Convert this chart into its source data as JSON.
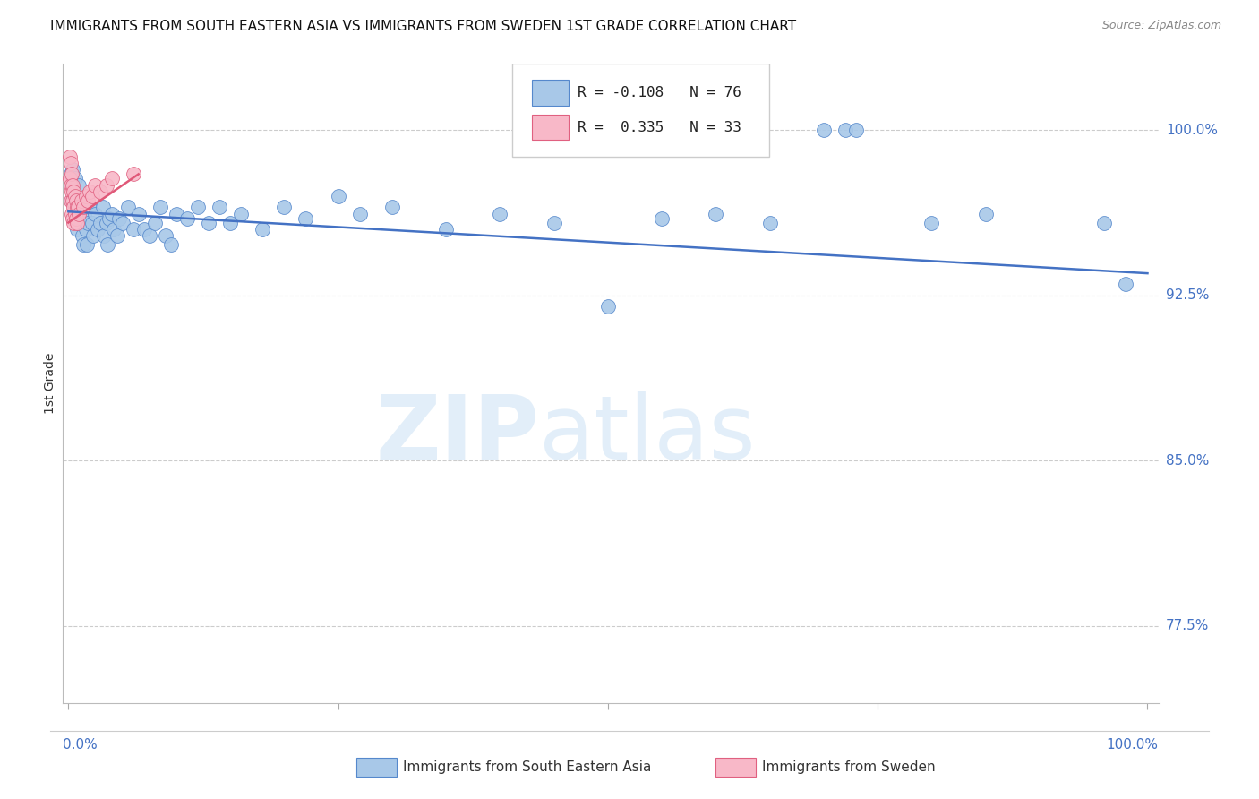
{
  "title": "IMMIGRANTS FROM SOUTH EASTERN ASIA VS IMMIGRANTS FROM SWEDEN 1ST GRADE CORRELATION CHART",
  "source": "Source: ZipAtlas.com",
  "ylabel": "1st Grade",
  "ytick_labels": [
    "100.0%",
    "92.5%",
    "85.0%",
    "77.5%"
  ],
  "ytick_values": [
    1.0,
    0.925,
    0.85,
    0.775
  ],
  "ymin": 0.74,
  "ymax": 1.03,
  "xmin": -0.005,
  "xmax": 1.01,
  "legend_blue_R": "-0.108",
  "legend_blue_N": "76",
  "legend_pink_R": "0.335",
  "legend_pink_N": "33",
  "legend_label_blue": "Immigrants from South Eastern Asia",
  "legend_label_pink": "Immigrants from Sweden",
  "blue_fill": "#a8c8e8",
  "blue_edge": "#5588cc",
  "pink_fill": "#f8b8c8",
  "pink_edge": "#e06080",
  "blue_line": "#4472c4",
  "pink_line": "#e05878",
  "blue_scatter_x": [
    0.002,
    0.003,
    0.003,
    0.004,
    0.005,
    0.005,
    0.006,
    0.006,
    0.007,
    0.007,
    0.008,
    0.008,
    0.009,
    0.009,
    0.01,
    0.01,
    0.011,
    0.012,
    0.013,
    0.014,
    0.015,
    0.016,
    0.017,
    0.018,
    0.02,
    0.022,
    0.023,
    0.025,
    0.027,
    0.03,
    0.032,
    0.033,
    0.035,
    0.036,
    0.038,
    0.04,
    0.042,
    0.045,
    0.047,
    0.05,
    0.055,
    0.06,
    0.065,
    0.07,
    0.075,
    0.08,
    0.085,
    0.09,
    0.095,
    0.1,
    0.11,
    0.12,
    0.13,
    0.14,
    0.15,
    0.16,
    0.18,
    0.2,
    0.22,
    0.25,
    0.27,
    0.3,
    0.35,
    0.4,
    0.45,
    0.5,
    0.55,
    0.6,
    0.65,
    0.7,
    0.72,
    0.73,
    0.8,
    0.85,
    0.96,
    0.98
  ],
  "blue_scatter_y": [
    0.98,
    0.975,
    0.968,
    0.982,
    0.972,
    0.96,
    0.978,
    0.965,
    0.97,
    0.96,
    0.968,
    0.955,
    0.965,
    0.958,
    0.975,
    0.96,
    0.965,
    0.958,
    0.952,
    0.948,
    0.962,
    0.955,
    0.948,
    0.958,
    0.965,
    0.958,
    0.952,
    0.962,
    0.955,
    0.958,
    0.965,
    0.952,
    0.958,
    0.948,
    0.96,
    0.962,
    0.955,
    0.952,
    0.96,
    0.958,
    0.965,
    0.955,
    0.962,
    0.955,
    0.952,
    0.958,
    0.965,
    0.952,
    0.948,
    0.962,
    0.96,
    0.965,
    0.958,
    0.965,
    0.958,
    0.962,
    0.955,
    0.965,
    0.96,
    0.97,
    0.962,
    0.965,
    0.955,
    0.962,
    0.958,
    0.92,
    0.96,
    0.962,
    0.958,
    1.0,
    1.0,
    1.0,
    0.958,
    0.962,
    0.958,
    0.93
  ],
  "pink_scatter_x": [
    0.001,
    0.001,
    0.002,
    0.002,
    0.002,
    0.003,
    0.003,
    0.003,
    0.004,
    0.004,
    0.004,
    0.005,
    0.005,
    0.005,
    0.006,
    0.006,
    0.007,
    0.007,
    0.008,
    0.008,
    0.009,
    0.01,
    0.012,
    0.014,
    0.016,
    0.018,
    0.02,
    0.022,
    0.025,
    0.03,
    0.035,
    0.04,
    0.06
  ],
  "pink_scatter_y": [
    0.988,
    0.978,
    0.985,
    0.975,
    0.968,
    0.98,
    0.972,
    0.962,
    0.975,
    0.968,
    0.96,
    0.972,
    0.965,
    0.958,
    0.97,
    0.962,
    0.968,
    0.96,
    0.965,
    0.958,
    0.965,
    0.962,
    0.968,
    0.965,
    0.97,
    0.968,
    0.972,
    0.97,
    0.975,
    0.972,
    0.975,
    0.978,
    0.98
  ],
  "blue_trendline_x0": 0.0,
  "blue_trendline_x1": 1.0,
  "blue_trendline_y0": 0.963,
  "blue_trendline_y1": 0.935,
  "pink_trendline_x0": 0.0,
  "pink_trendline_x1": 0.065,
  "pink_trendline_y0": 0.958,
  "pink_trendline_y1": 0.98,
  "grid_color": "#cccccc",
  "grid_style": "--",
  "watermark_color": "#d0e4f5",
  "watermark_alpha": 0.6
}
